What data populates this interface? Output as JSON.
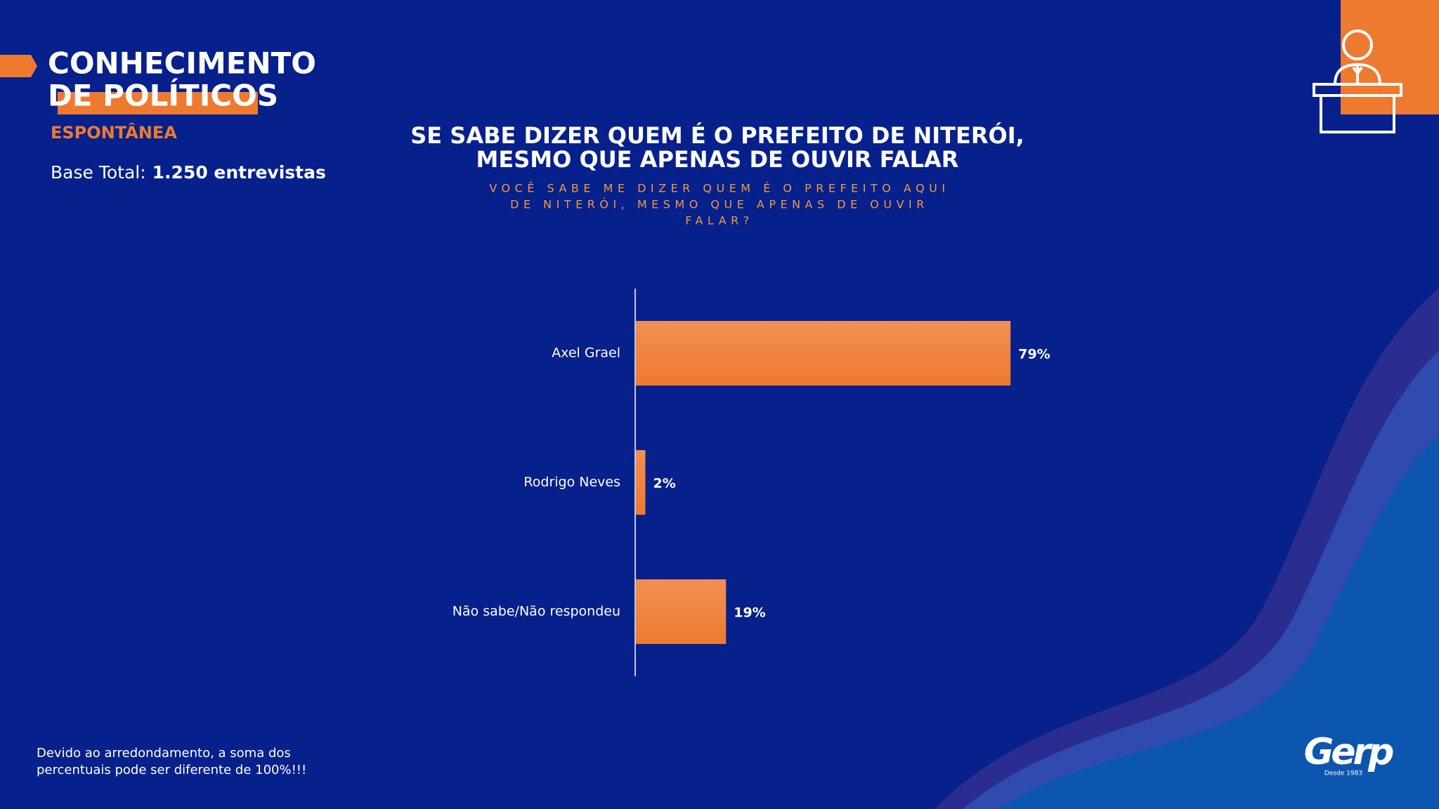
{
  "header": {
    "title_line1": "CONHECIMENTO",
    "title_line2": "DE POLÍTICOS",
    "subtitle": "ESPONTÂNEA",
    "base_label": "Base Total:",
    "base_value": "1.250 entrevistas"
  },
  "chart_data": {
    "type": "bar",
    "orientation": "horizontal",
    "title": [
      "SE SABE DIZER QUEM É O PREFEITO DE NITERÓI,",
      "MESMO QUE APENAS DE OUVIR FALAR"
    ],
    "subtitle": [
      "VOCÊ SABE ME DIZER QUEM É O PREFEITO AQUI",
      "DE NITERÓI, MESMO QUE APENAS DE OUVIR",
      "FALAR?"
    ],
    "categories": [
      "Axel Grael",
      "Rodrigo Neves",
      "Não sabe/Não respondeu"
    ],
    "values": [
      79,
      2,
      19
    ],
    "value_labels": [
      "79%",
      "2%",
      "19%"
    ],
    "color": "#ee7a30"
  },
  "footnote": [
    "Devido ao arredondamento, a soma dos",
    "percentuais pode ser diferente de 100%!!!"
  ],
  "logo": {
    "name": "Gerp",
    "since": "Desde 1983"
  }
}
